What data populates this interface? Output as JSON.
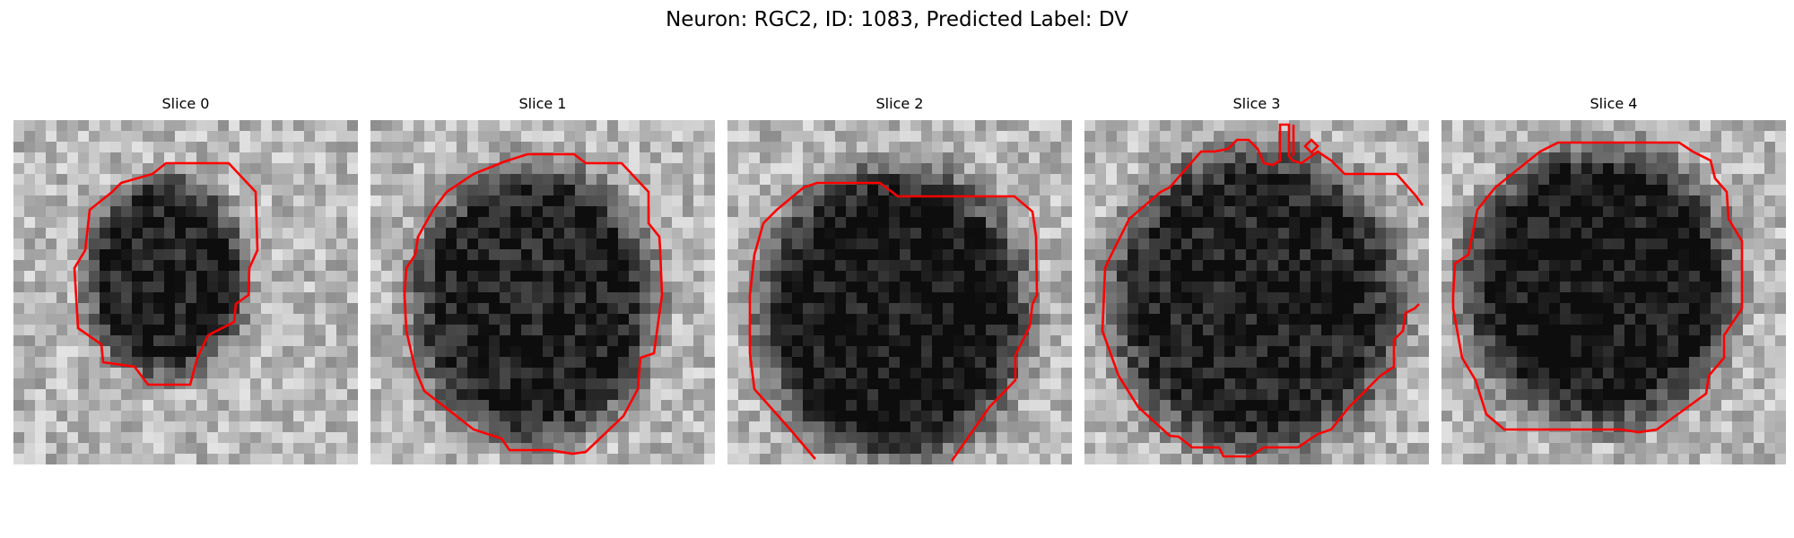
{
  "figure": {
    "title": "Neuron: RGC2, ID: 1083, Predicted Label: DV"
  },
  "panels": [
    {
      "title": "Slice 0"
    },
    {
      "title": "Slice 1"
    },
    {
      "title": "Slice 2"
    },
    {
      "title": "Slice 3"
    },
    {
      "title": "Slice 4"
    }
  ],
  "colors": {
    "contour": "#ff0000",
    "background": "#ffffff"
  }
}
